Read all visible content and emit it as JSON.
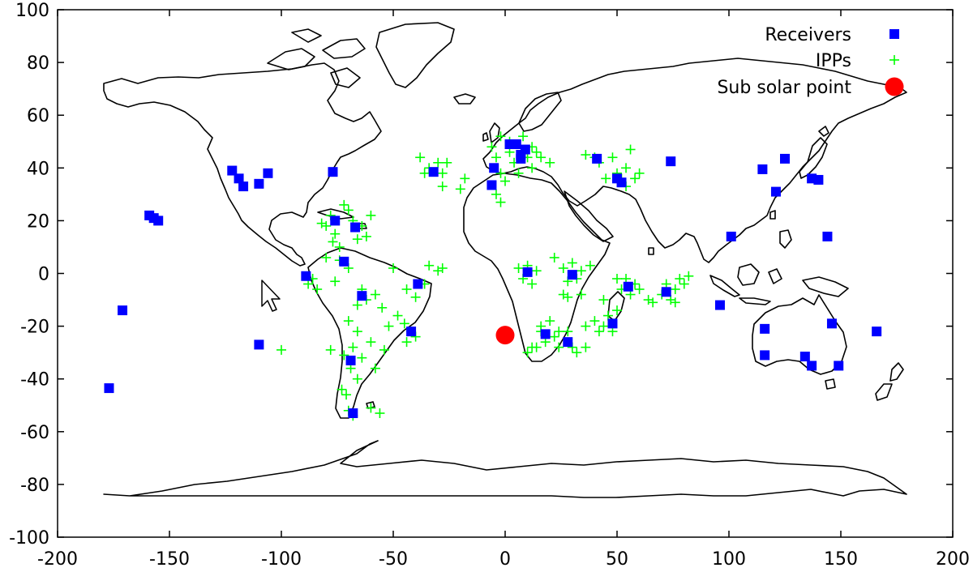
{
  "chart_data": {
    "type": "scatter",
    "title": "",
    "xlabel": "",
    "ylabel": "",
    "xlim": [
      -200,
      200
    ],
    "ylim": [
      -100,
      100
    ],
    "xticks": [
      "-200",
      "-150",
      "-100",
      "-50",
      "0",
      "50",
      "100",
      "150",
      "200"
    ],
    "yticks": [
      "-100",
      "-80",
      "-60",
      "-40",
      "-20",
      "0",
      "20",
      "40",
      "60",
      "80",
      "100"
    ],
    "grid": false,
    "legend_position": "top-right",
    "background": "world coastline map",
    "series": [
      {
        "name": "Receivers",
        "marker": "square",
        "color": "#0000ff",
        "points": [
          [
            -122,
            39
          ],
          [
            -119,
            36
          ],
          [
            -117,
            33
          ],
          [
            -110,
            34
          ],
          [
            -106,
            38
          ],
          [
            -77,
            38.5
          ],
          [
            -76,
            20
          ],
          [
            -67,
            17.5
          ],
          [
            -72,
            4.5
          ],
          [
            -64,
            -8.5
          ],
          [
            -89,
            -1
          ],
          [
            -69,
            -33
          ],
          [
            -68,
            -53
          ],
          [
            -42,
            -22
          ],
          [
            -39,
            -4
          ],
          [
            -32,
            38.5
          ],
          [
            -5,
            40
          ],
          [
            -6,
            33.5
          ],
          [
            2,
            49
          ],
          [
            5,
            49
          ],
          [
            7,
            45
          ],
          [
            9,
            47
          ],
          [
            7,
            43.5
          ],
          [
            41,
            43.5
          ],
          [
            50,
            36
          ],
          [
            52,
            34.5
          ],
          [
            74,
            42.5
          ],
          [
            10,
            0.5
          ],
          [
            30,
            -0.5
          ],
          [
            18,
            -23
          ],
          [
            28,
            -26
          ],
          [
            48,
            -19
          ],
          [
            55,
            -5
          ],
          [
            72,
            -7
          ],
          [
            -159,
            22
          ],
          [
            -157,
            21
          ],
          [
            -155,
            20
          ],
          [
            -171,
            -14
          ],
          [
            -177,
            -43.5
          ],
          [
            -110,
            -27
          ],
          [
            96,
            -12
          ],
          [
            101,
            14
          ],
          [
            115,
            39.5
          ],
          [
            121,
            31
          ],
          [
            125,
            43.5
          ],
          [
            137,
            36
          ],
          [
            140,
            35.5
          ],
          [
            144,
            14
          ],
          [
            146,
            -19
          ],
          [
            166,
            -22
          ],
          [
            116,
            -21
          ],
          [
            116,
            -31
          ],
          [
            134,
            -31.5
          ],
          [
            137,
            -35
          ],
          [
            149,
            -35
          ]
        ]
      },
      {
        "name": "IPPs",
        "marker": "plus",
        "color": "#00ff00",
        "points": [
          [
            -80,
            18
          ],
          [
            -78,
            22
          ],
          [
            -76,
            15
          ],
          [
            -72,
            26
          ],
          [
            -70,
            24
          ],
          [
            -68,
            20
          ],
          [
            -64,
            18
          ],
          [
            -60,
            22
          ],
          [
            -74,
            10
          ],
          [
            -77,
            12
          ],
          [
            -82,
            19
          ],
          [
            -66,
            13
          ],
          [
            -62,
            14
          ],
          [
            -80,
            6
          ],
          [
            -74,
            5
          ],
          [
            -86,
            -2
          ],
          [
            -84,
            -6
          ],
          [
            -88,
            -4
          ],
          [
            -76,
            -3
          ],
          [
            -70,
            2
          ],
          [
            -64,
            -6
          ],
          [
            -62,
            -10
          ],
          [
            -66,
            -12
          ],
          [
            -58,
            -8
          ],
          [
            -55,
            -13
          ],
          [
            -50,
            2
          ],
          [
            -44,
            -6
          ],
          [
            -40,
            -9
          ],
          [
            -36,
            -4
          ],
          [
            -34,
            3
          ],
          [
            -30,
            1
          ],
          [
            -28,
            2
          ],
          [
            -42,
            -22
          ],
          [
            -45,
            -19
          ],
          [
            -40,
            -24
          ],
          [
            -48,
            -16
          ],
          [
            -52,
            -20
          ],
          [
            -54,
            -29
          ],
          [
            -60,
            -26
          ],
          [
            -66,
            -22
          ],
          [
            -70,
            -18
          ],
          [
            -68,
            -28
          ],
          [
            -72,
            -31
          ],
          [
            -69,
            -36
          ],
          [
            -66,
            -40
          ],
          [
            -73,
            -44
          ],
          [
            -71,
            -46
          ],
          [
            -70,
            -52
          ],
          [
            -68,
            -54
          ],
          [
            -60,
            -51
          ],
          [
            -56,
            -53
          ],
          [
            -78,
            -29
          ],
          [
            -100,
            -29
          ],
          [
            -64,
            -32
          ],
          [
            -58,
            -36
          ],
          [
            -44,
            -26
          ],
          [
            -38,
            44
          ],
          [
            -36,
            38
          ],
          [
            -34,
            40
          ],
          [
            -30,
            42
          ],
          [
            -28,
            38
          ],
          [
            -26,
            42
          ],
          [
            -28,
            33
          ],
          [
            -20,
            32
          ],
          [
            -18,
            36
          ],
          [
            -6,
            48
          ],
          [
            -4,
            44
          ],
          [
            -2,
            38
          ],
          [
            -4,
            30
          ],
          [
            -2,
            27
          ],
          [
            0,
            35
          ],
          [
            2,
            46
          ],
          [
            4,
            42
          ],
          [
            6,
            38
          ],
          [
            8,
            52
          ],
          [
            10,
            44
          ],
          [
            12,
            48
          ],
          [
            12,
            40
          ],
          [
            14,
            46
          ],
          [
            16,
            44
          ],
          [
            20,
            42
          ],
          [
            -2,
            52
          ],
          [
            2,
            50
          ],
          [
            36,
            45
          ],
          [
            40,
            44
          ],
          [
            42,
            42
          ],
          [
            48,
            44
          ],
          [
            50,
            38
          ],
          [
            52,
            36
          ],
          [
            54,
            40
          ],
          [
            56,
            47
          ],
          [
            58,
            36
          ],
          [
            60,
            38
          ],
          [
            45,
            36
          ],
          [
            54,
            33
          ],
          [
            6,
            2
          ],
          [
            8,
            -2
          ],
          [
            10,
            3
          ],
          [
            14,
            1
          ],
          [
            12,
            -4
          ],
          [
            22,
            6
          ],
          [
            26,
            2
          ],
          [
            28,
            -3
          ],
          [
            30,
            4
          ],
          [
            32,
            -2
          ],
          [
            34,
            1
          ],
          [
            38,
            3
          ],
          [
            26,
            -8
          ],
          [
            20,
            -18
          ],
          [
            16,
            -20
          ],
          [
            22,
            -24
          ],
          [
            18,
            -26
          ],
          [
            14,
            -28
          ],
          [
            24,
            -28
          ],
          [
            28,
            -22
          ],
          [
            30,
            -28
          ],
          [
            32,
            -30
          ],
          [
            36,
            -20
          ],
          [
            36,
            -28
          ],
          [
            40,
            -18
          ],
          [
            44,
            -20
          ],
          [
            46,
            -16
          ],
          [
            48,
            -22
          ],
          [
            50,
            -14
          ],
          [
            42,
            -22
          ],
          [
            52,
            -6
          ],
          [
            54,
            -2
          ],
          [
            56,
            -8
          ],
          [
            58,
            -4
          ],
          [
            60,
            -6
          ],
          [
            64,
            -10
          ],
          [
            70,
            -8
          ],
          [
            72,
            -4
          ],
          [
            74,
            -10
          ],
          [
            76,
            -6
          ],
          [
            78,
            -2
          ],
          [
            80,
            -4
          ],
          [
            82,
            -1
          ],
          [
            66,
            -11
          ],
          [
            76,
            -11
          ],
          [
            44,
            -10
          ],
          [
            50,
            -2
          ],
          [
            34,
            -8
          ],
          [
            28,
            -9
          ],
          [
            12,
            -28
          ],
          [
            16,
            -22
          ],
          [
            24,
            -22
          ],
          [
            10,
            -30
          ]
        ]
      },
      {
        "name": "Sub solar point",
        "marker": "circle",
        "color": "#ff0000",
        "points": [
          [
            0,
            -23.4
          ]
        ]
      }
    ]
  }
}
